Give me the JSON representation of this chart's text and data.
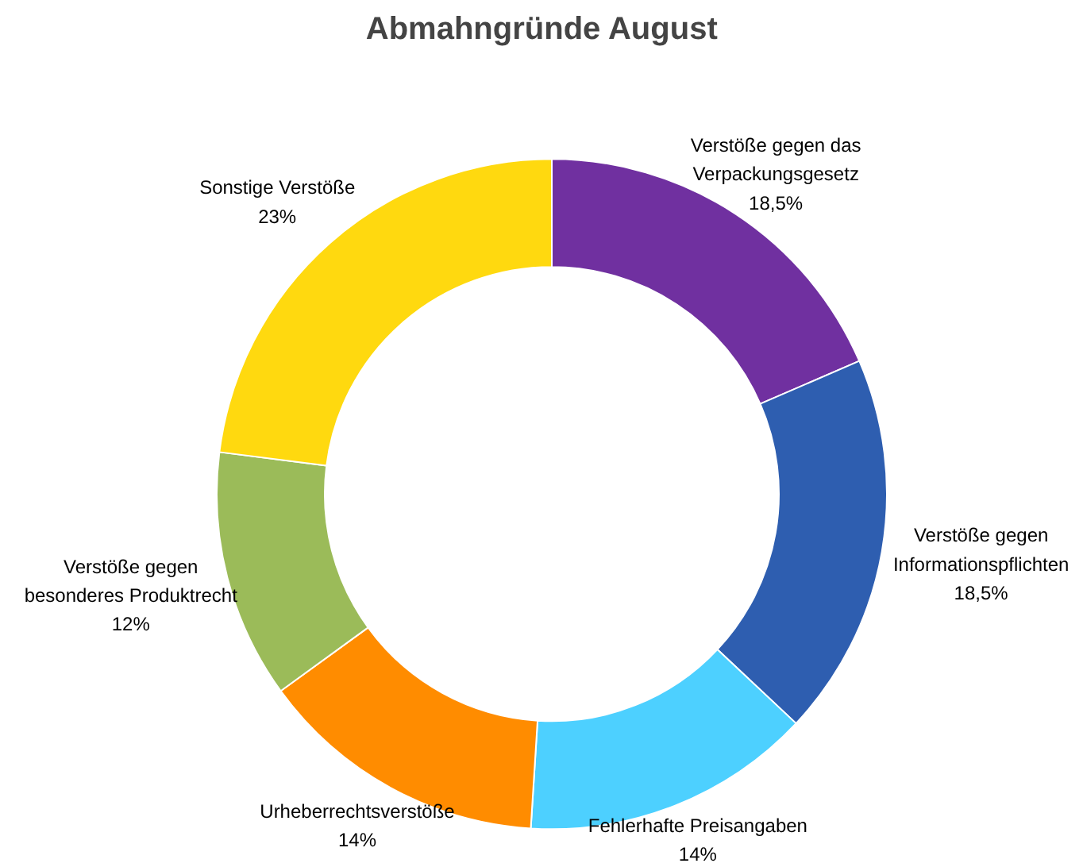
{
  "chart_data": {
    "type": "donut",
    "title": "Abmahngründe August",
    "categories": [
      "Verstöße gegen das\nVerpackungsgesetz",
      "Verstöße gegen\nInformationspflichten",
      "Fehlerhafte Preisangaben",
      "Urheberrechtsverstöße",
      "Verstöße gegen\nbesonderes Produktrecht",
      "Sonstige Verstöße"
    ],
    "values": [
      18.5,
      18.5,
      14,
      14,
      12,
      23
    ],
    "value_labels": [
      "18,5%",
      "18,5%",
      "14%",
      "14%",
      "12%",
      "23%"
    ],
    "colors": [
      "#7030a0",
      "#2e5eb0",
      "#4dd0ff",
      "#ff8c00",
      "#9bbb59",
      "#ffd90f"
    ]
  }
}
